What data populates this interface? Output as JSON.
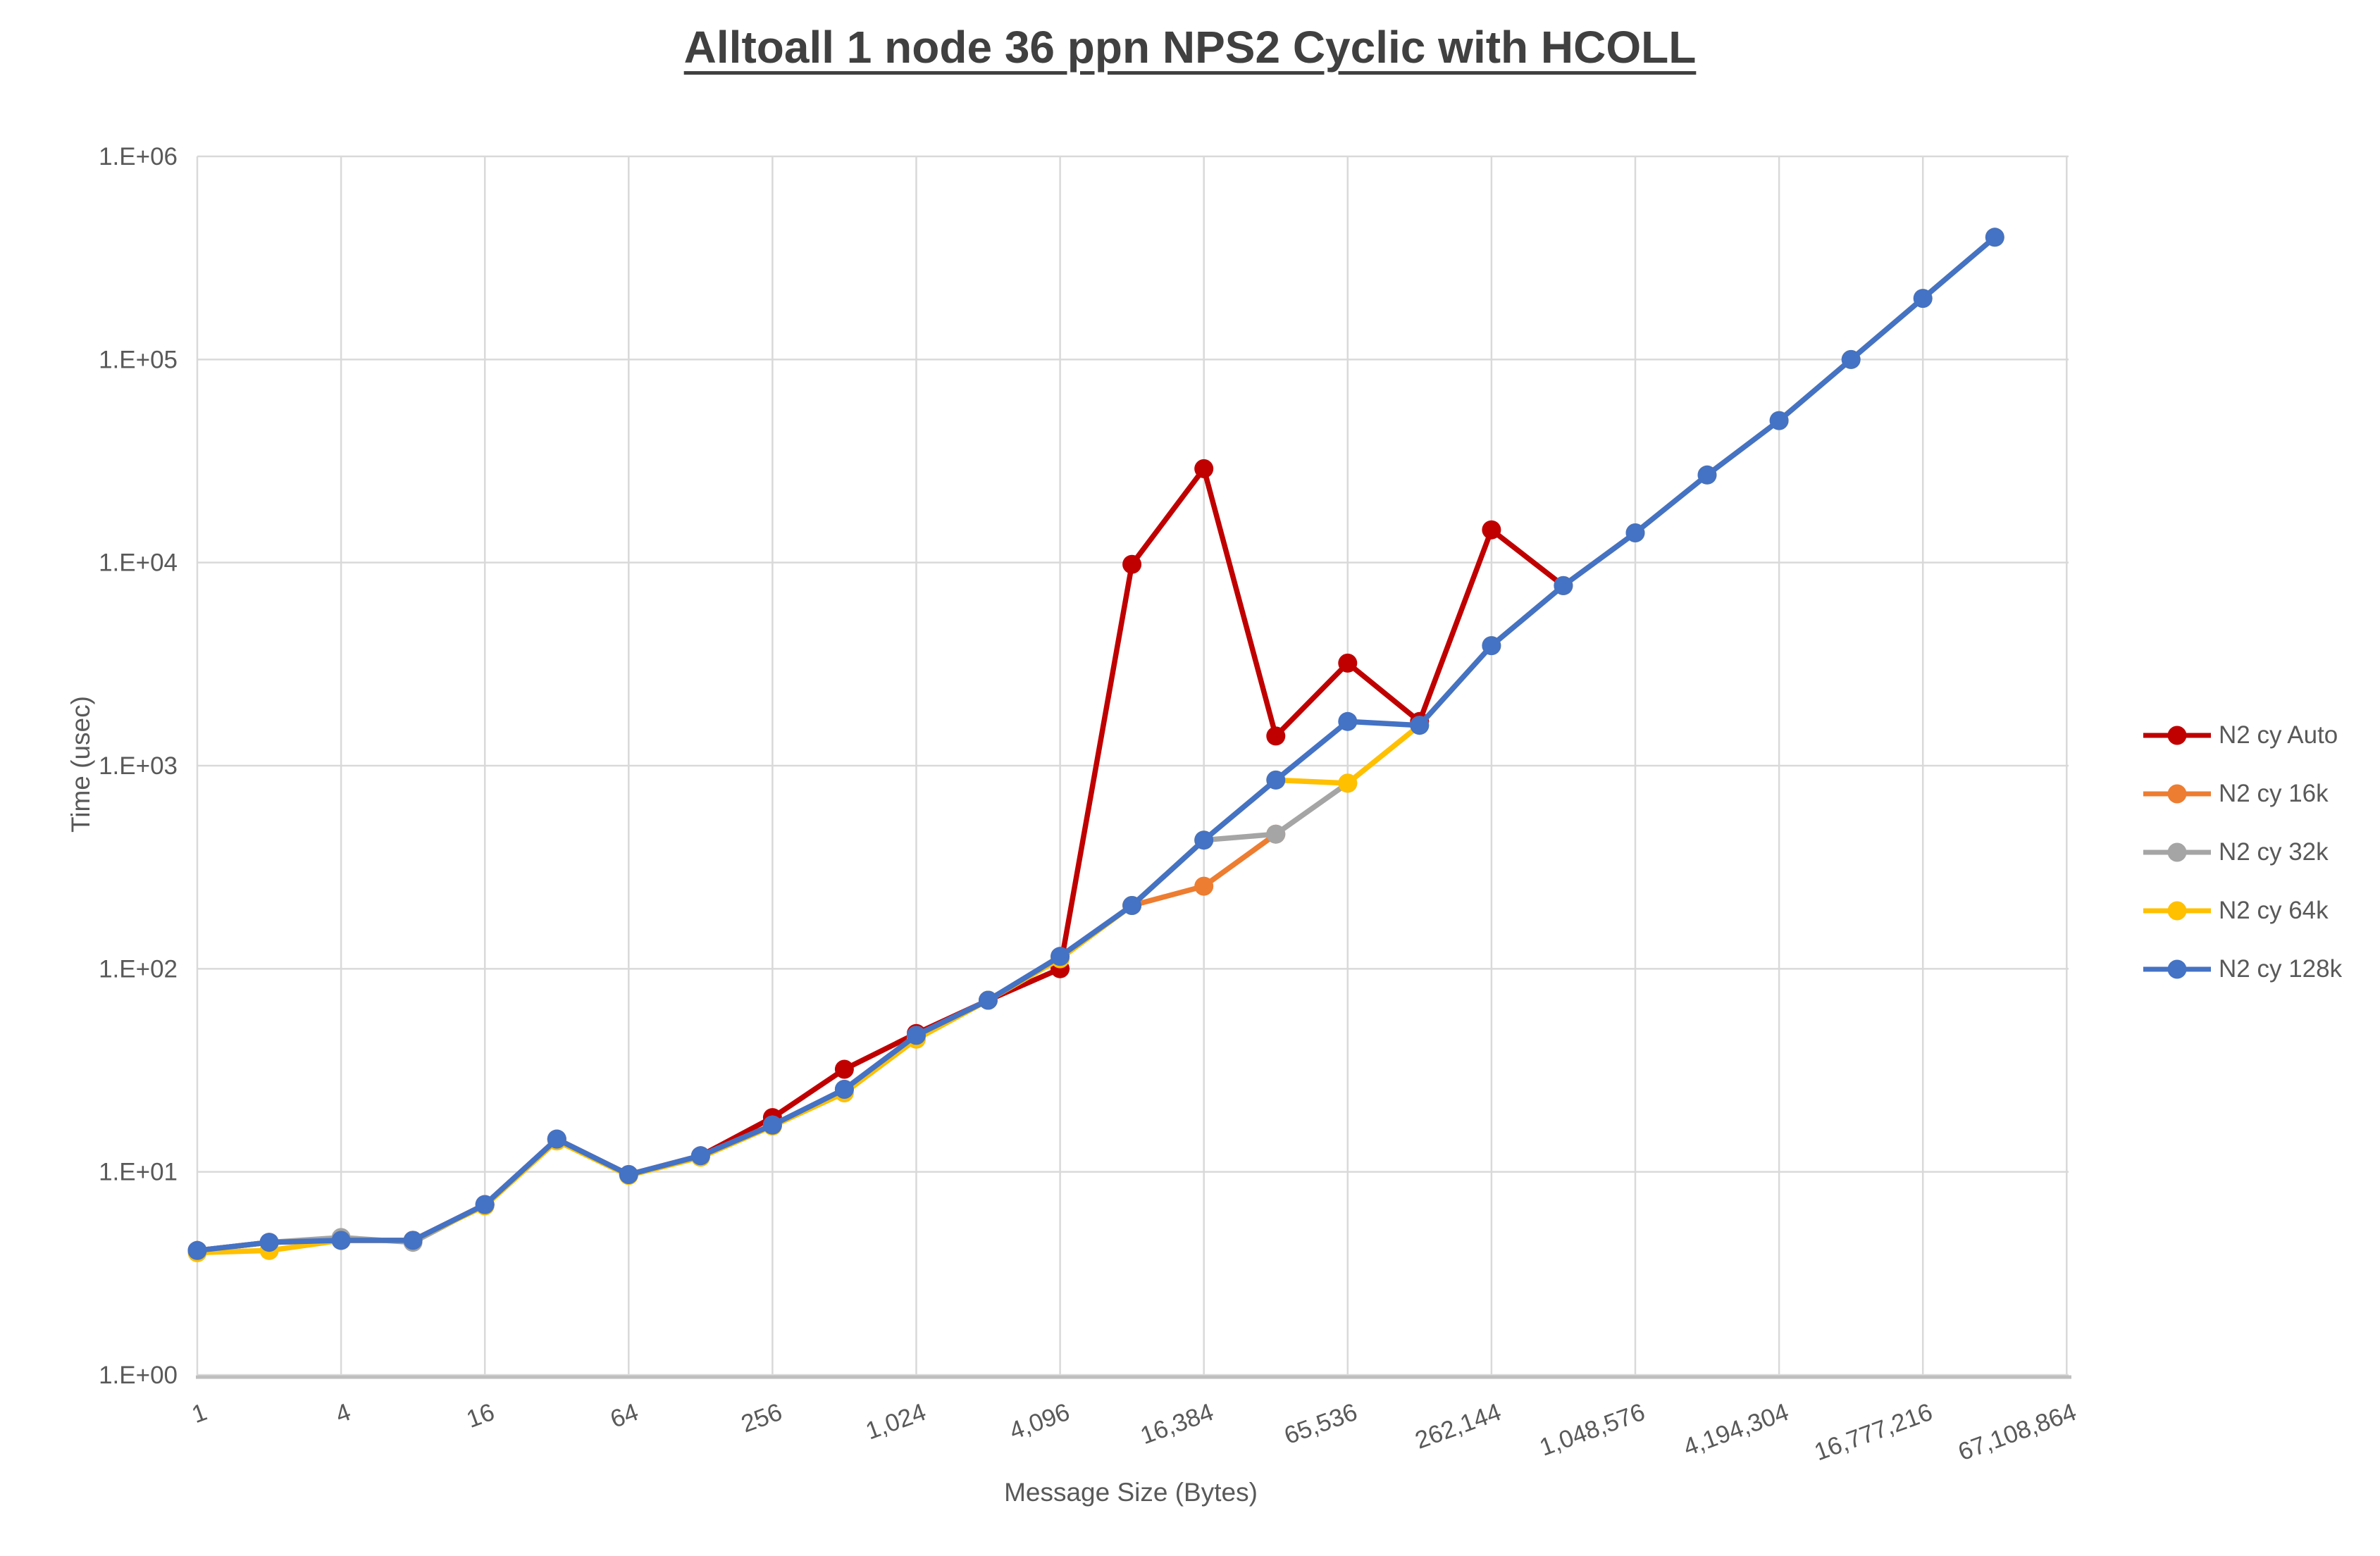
{
  "ui": {
    "title": "Alltoall 1 node 36 ppn NPS2 Cyclic with HCOLL",
    "y_axis_title": "Time (usec)",
    "x_axis_title": "Message Size (Bytes)",
    "y_ticks": [
      "1.E+06",
      "1.E+05",
      "1.E+04",
      "1.E+03",
      "1.E+02",
      "1.E+01",
      "1.E+00"
    ],
    "x_ticks": [
      "1",
      "4",
      "16",
      "64",
      "256",
      "1,024",
      "4,096",
      "16,384",
      "65,536",
      "262,144",
      "1,048,576",
      "4,194,304",
      "16,777,216",
      "67,108,864"
    ]
  },
  "colors": {
    "title_text": "#404040",
    "axis_text": "#595959",
    "gridline": "#d9d9d9",
    "axis_line": "#bfbfbf",
    "background": "#ffffff"
  },
  "chart_data": {
    "type": "line",
    "title": "Alltoall 1 node 36 ppn NPS2 Cyclic with HCOLL",
    "xlabel": "Message Size (Bytes)",
    "ylabel": "Time (usec)",
    "x_scale": "log2",
    "y_scale": "log10",
    "xlim": [
      1,
      67108864
    ],
    "ylim": [
      1,
      1000000
    ],
    "grid": true,
    "legend_position": "right",
    "x": [
      1,
      2,
      4,
      8,
      16,
      32,
      64,
      128,
      256,
      512,
      1024,
      2048,
      4096,
      8192,
      16384,
      32768,
      65536,
      131072,
      262144,
      524288,
      1048576,
      2097152,
      4194304,
      8388608,
      16777216,
      33554432
    ],
    "series": [
      {
        "name": "N2 cy Auto",
        "color": "#C00000",
        "values": [
          4.1,
          4.5,
          4.6,
          4.6,
          6.9,
          14.5,
          9.7,
          12,
          18.5,
          32,
          48,
          70,
          100,
          9800,
          29000,
          1400,
          3200,
          1650,
          14500,
          7700
        ]
      },
      {
        "name": "N2 cy 16k",
        "color": "#ED7D31",
        "values": [
          4.1,
          4.5,
          4.6,
          4.6,
          6.9,
          14.5,
          9.7,
          12,
          17,
          25.5,
          47,
          70,
          115,
          205,
          255,
          460
        ]
      },
      {
        "name": "N2 cy 32k",
        "color": "#A5A5A5",
        "values": [
          4.1,
          4.5,
          4.75,
          4.5,
          6.9,
          14.5,
          9.7,
          12,
          17,
          25.5,
          47,
          70,
          115,
          205,
          430,
          460,
          820
        ]
      },
      {
        "name": "N2 cy 64k",
        "color": "#FFC000",
        "values": [
          4.0,
          4.1,
          4.6,
          4.6,
          6.8,
          14.2,
          9.6,
          11.8,
          16.8,
          24.5,
          45,
          70,
          112,
          205,
          430,
          850,
          820,
          1580,
          3900,
          7700,
          14000,
          27000,
          50000,
          100000,
          200000,
          400000
        ]
      },
      {
        "name": "N2 cy 128k",
        "color": "#4472C4",
        "values": [
          4.1,
          4.5,
          4.6,
          4.6,
          6.9,
          14.5,
          9.7,
          12,
          17,
          25.5,
          47,
          70,
          115,
          205,
          430,
          850,
          1650,
          1580,
          3900,
          7700,
          14000,
          27000,
          50000,
          100000,
          200000,
          400000
        ]
      }
    ]
  }
}
